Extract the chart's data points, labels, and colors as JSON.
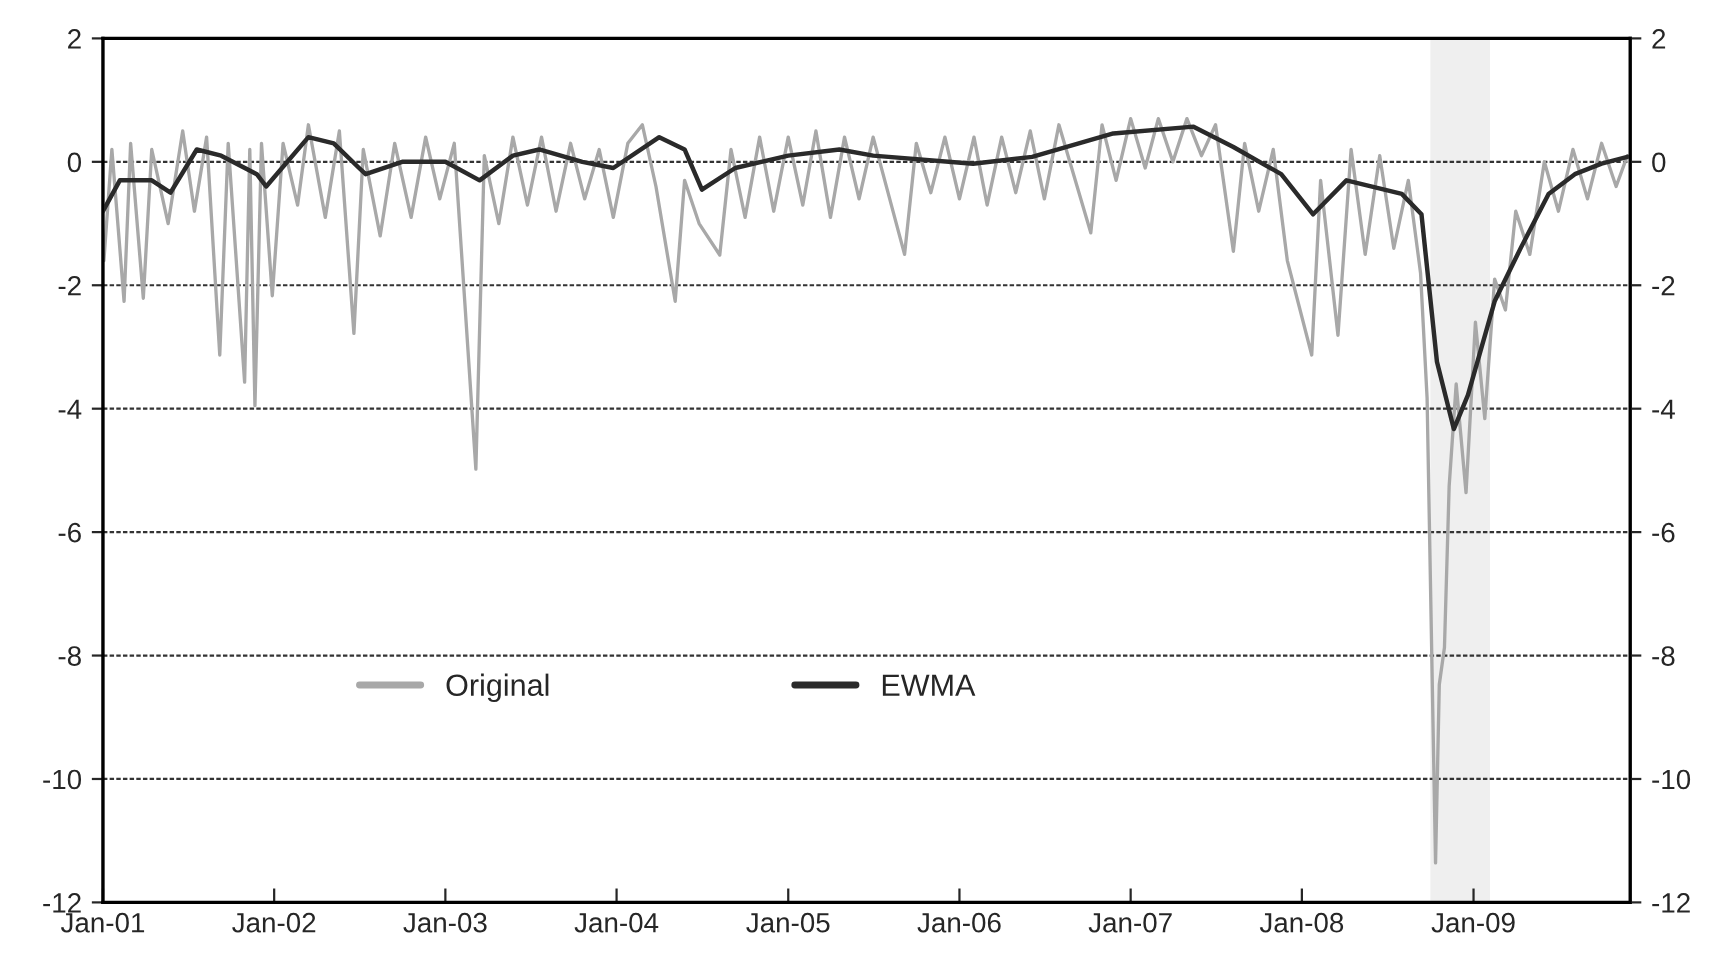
{
  "chart_data": {
    "type": "line",
    "xlim": [
      "2001-01-01",
      "2009-12-01"
    ],
    "xticks": [
      {
        "value": "2001-01-01",
        "label": "Jan-01"
      },
      {
        "value": "2002-01-01",
        "label": "Jan-02"
      },
      {
        "value": "2003-01-01",
        "label": "Jan-03"
      },
      {
        "value": "2004-01-01",
        "label": "Jan-04"
      },
      {
        "value": "2005-01-01",
        "label": "Jan-05"
      },
      {
        "value": "2006-01-01",
        "label": "Jan-06"
      },
      {
        "value": "2007-01-01",
        "label": "Jan-07"
      },
      {
        "value": "2008-01-01",
        "label": "Jan-08"
      },
      {
        "value": "2009-01-01",
        "label": "Jan-09"
      }
    ],
    "ylim": [
      -12,
      2
    ],
    "yticks": [
      -12,
      -10,
      -8,
      -6,
      -4,
      -2,
      0,
      2
    ],
    "y2lim": [
      -12,
      2
    ],
    "y2ticks": [
      -12,
      -10,
      -8,
      -6,
      -4,
      -2,
      0,
      2
    ],
    "grid": "y",
    "legend": "lower left",
    "bands": [
      {
        "axis": "x",
        "from": "2008-10-01",
        "to": "2009-02-05",
        "color": "#efefef"
      }
    ],
    "series": [
      {
        "name": "Original",
        "color": "#a8a8a8",
        "x": [
          "2001-01-03",
          "2001-01-20",
          "2001-02-15",
          "2001-03-01",
          "2001-03-28",
          "2001-04-15",
          "2001-05-20",
          "2001-06-20",
          "2001-07-15",
          "2001-08-10",
          "2001-09-07",
          "2001-09-25",
          "2001-10-30",
          "2001-11-10",
          "2001-11-21",
          "2001-12-05",
          "2001-12-28",
          "2002-01-20",
          "2002-02-20",
          "2002-03-15",
          "2002-04-20",
          "2002-05-20",
          "2002-06-20",
          "2002-07-10",
          "2002-08-15",
          "2002-09-15",
          "2002-10-20",
          "2002-11-20",
          "2002-12-20",
          "2003-01-20",
          "2003-03-07",
          "2003-03-25",
          "2003-04-25",
          "2003-05-25",
          "2003-06-25",
          "2003-07-25",
          "2003-08-25",
          "2003-09-25",
          "2003-10-25",
          "2003-11-25",
          "2003-12-25",
          "2004-01-25",
          "2004-02-25",
          "2004-03-25",
          "2004-05-05",
          "2004-05-25",
          "2004-06-25",
          "2004-08-08",
          "2004-09-01",
          "2004-10-01",
          "2004-11-01",
          "2004-12-01",
          "2005-01-01",
          "2005-02-01",
          "2005-03-01",
          "2005-04-01",
          "2005-05-01",
          "2005-06-01",
          "2005-07-01",
          "2005-09-06",
          "2005-10-01",
          "2005-11-01",
          "2005-12-01",
          "2006-01-01",
          "2006-02-01",
          "2006-03-01",
          "2006-04-01",
          "2006-05-01",
          "2006-06-01",
          "2006-07-01",
          "2006-08-01",
          "2006-10-08",
          "2006-11-01",
          "2006-12-01",
          "2007-01-01",
          "2007-02-01",
          "2007-03-01",
          "2007-04-01",
          "2007-05-01",
          "2007-06-01",
          "2007-07-01",
          "2007-08-08",
          "2007-09-01",
          "2007-10-01",
          "2007-11-01",
          "2007-12-01",
          "2008-01-22",
          "2008-02-10",
          "2008-03-18",
          "2008-04-15",
          "2008-05-15",
          "2008-06-15",
          "2008-07-15",
          "2008-08-15",
          "2008-09-10",
          "2008-09-24",
          "2008-10-12",
          "2008-10-20",
          "2008-10-31",
          "2008-11-10",
          "2008-11-25",
          "2008-12-16",
          "2009-01-05",
          "2009-01-25",
          "2009-02-15",
          "2009-03-10",
          "2009-04-01",
          "2009-05-01",
          "2009-06-01",
          "2009-07-01",
          "2009-08-01",
          "2009-09-01",
          "2009-10-01",
          "2009-11-01",
          "2009-11-25"
        ],
        "values": [
          -1.6,
          0.2,
          -2.26,
          0.3,
          -2.21,
          0.2,
          -1.0,
          0.5,
          -0.8,
          0.4,
          -3.13,
          0.3,
          -3.57,
          0.2,
          -3.95,
          0.3,
          -2.17,
          0.3,
          -0.7,
          0.6,
          -0.9,
          0.5,
          -2.78,
          0.2,
          -1.2,
          0.3,
          -0.9,
          0.4,
          -0.6,
          0.3,
          -4.98,
          0.1,
          -1.0,
          0.4,
          -0.7,
          0.4,
          -0.8,
          0.3,
          -0.6,
          0.2,
          -0.9,
          0.3,
          0.6,
          -0.4,
          -2.26,
          -0.3,
          -1.0,
          -1.51,
          0.2,
          -0.9,
          0.4,
          -0.8,
          0.4,
          -0.7,
          0.5,
          -0.9,
          0.4,
          -0.6,
          0.4,
          -1.5,
          0.3,
          -0.5,
          0.4,
          -0.6,
          0.4,
          -0.7,
          0.4,
          -0.5,
          0.5,
          -0.6,
          0.6,
          -1.15,
          0.6,
          -0.3,
          0.7,
          -0.1,
          0.7,
          0.0,
          0.7,
          0.1,
          0.6,
          -1.45,
          0.3,
          -0.8,
          0.2,
          -1.6,
          -3.13,
          -0.3,
          -2.81,
          0.2,
          -1.5,
          0.1,
          -1.4,
          -0.3,
          -1.8,
          -3.83,
          -11.36,
          -8.47,
          -7.87,
          -5.26,
          -3.6,
          -5.36,
          -2.6,
          -4.16,
          -1.9,
          -2.4,
          -0.8,
          -1.5,
          0.0,
          -0.8,
          0.2,
          -0.6,
          0.3,
          -0.4,
          0.1
        ]
      },
      {
        "name": "EWMA",
        "color": "#2a2a2a",
        "x": [
          "2001-01-01",
          "2001-02-06",
          "2001-04-15",
          "2001-05-25",
          "2001-07-20",
          "2001-09-10",
          "2001-11-25",
          "2001-12-15",
          "2002-03-15",
          "2002-05-08",
          "2002-07-01",
          "2002-07-15",
          "2002-10-01",
          "2003-01-01",
          "2003-03-15",
          "2003-05-25",
          "2003-07-20",
          "2003-10-20",
          "2003-12-25",
          "2004-04-01",
          "2004-05-25",
          "2004-07-01",
          "2004-09-10",
          "2005-01-01",
          "2005-04-20",
          "2005-07-01",
          "2006-01-30",
          "2006-06-05",
          "2006-11-25",
          "2007-05-15",
          "2007-08-08",
          "2007-11-18",
          "2008-01-25",
          "2008-04-05",
          "2008-08-01",
          "2008-09-12",
          "2008-10-15",
          "2008-11-20",
          "2008-12-20",
          "2009-02-15",
          "2009-04-12",
          "2009-06-10",
          "2009-08-05",
          "2009-10-01",
          "2009-11-25"
        ],
        "values": [
          -0.8,
          -0.3,
          -0.3,
          -0.5,
          0.2,
          0.1,
          -0.2,
          -0.4,
          0.4,
          0.3,
          -0.1,
          -0.2,
          0.0,
          0.0,
          -0.3,
          0.1,
          0.2,
          0.0,
          -0.1,
          0.4,
          0.2,
          -0.45,
          -0.1,
          0.1,
          0.2,
          0.1,
          -0.03,
          0.08,
          0.46,
          0.57,
          0.24,
          -0.2,
          -0.85,
          -0.3,
          -0.52,
          -0.85,
          -3.24,
          -4.33,
          -3.78,
          -2.26,
          -1.39,
          -0.52,
          -0.2,
          -0.03,
          0.08
        ]
      }
    ]
  }
}
